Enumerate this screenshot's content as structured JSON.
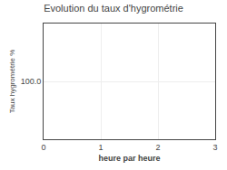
{
  "chart_data": {
    "type": "line",
    "title": "Evolution du taux d'hygrométrie",
    "xlabel": "heure par heure",
    "ylabel": "Taux hygrométrie %",
    "xlim": [
      0,
      3
    ],
    "xticks": [
      0,
      1,
      2,
      3
    ],
    "ylim": [
      99.5,
      100.5
    ],
    "yticks": [
      {
        "value": 100.0,
        "label": "100.0"
      }
    ],
    "grid": true
  }
}
